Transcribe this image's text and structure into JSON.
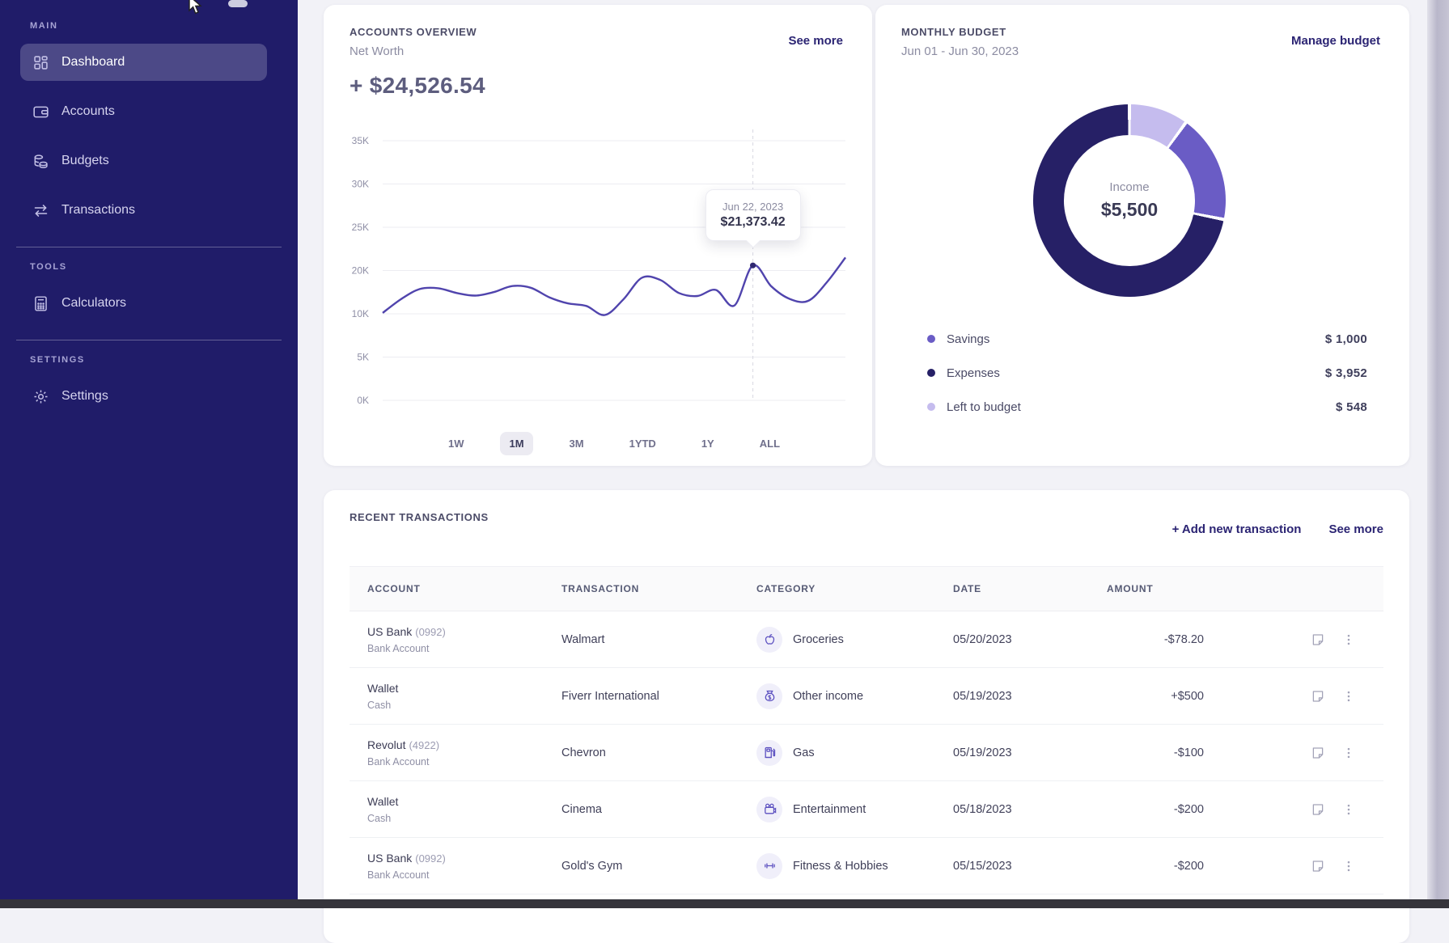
{
  "colors": {
    "sidebar_bg": "#201c69",
    "accent_link": "#2b2473",
    "line_series": "#5044ad",
    "donut_dark": "#262066",
    "donut_medium": "#6a5cc5",
    "donut_light": "#c5bcee"
  },
  "sidebar": {
    "sections": [
      {
        "label": "MAIN",
        "items": [
          {
            "label": "Dashboard",
            "icon": "dashboard-icon",
            "active": true
          },
          {
            "label": "Accounts",
            "icon": "wallet-icon",
            "active": false
          },
          {
            "label": "Budgets",
            "icon": "coins-icon",
            "active": false
          },
          {
            "label": "Transactions",
            "icon": "transfer-arrows-icon",
            "active": false
          }
        ]
      },
      {
        "label": "TOOLS",
        "items": [
          {
            "label": "Calculators",
            "icon": "calculator-icon",
            "active": false
          }
        ]
      },
      {
        "label": "SETTINGS",
        "items": [
          {
            "label": "Settings",
            "icon": "gear-icon",
            "active": false
          }
        ]
      }
    ]
  },
  "accounts_overview": {
    "title": "ACCOUNTS OVERVIEW",
    "subtitle": "Net Worth",
    "net_worth": "+ $24,526.54",
    "see_more": "See more",
    "ranges": [
      "1W",
      "1M",
      "3M",
      "1YTD",
      "1Y",
      "ALL"
    ],
    "active_range": "1M",
    "tooltip": {
      "date": "Jun 22, 2023",
      "value": "$21,373.42"
    }
  },
  "monthly_budget": {
    "title": "MONTHLY BUDGET",
    "subtitle": "Jun 01 - Jun 30, 2023",
    "manage": "Manage budget",
    "center_label": "Income",
    "center_value": "$5,500",
    "legend": [
      {
        "label": "Savings",
        "value": "$ 1,000",
        "color": "#6a5cc5"
      },
      {
        "label": "Expenses",
        "value": "$ 3,952",
        "color": "#262066"
      },
      {
        "label": "Left to budget",
        "value": "$ 548",
        "color": "#c5bcee"
      }
    ]
  },
  "transactions": {
    "title": "RECENT TRANSACTIONS",
    "add_new": "+ Add new transaction",
    "see_more": "See more",
    "columns": [
      "ACCOUNT",
      "TRANSACTION",
      "CATEGORY",
      "DATE",
      "AMOUNT"
    ],
    "rows": [
      {
        "account": "US Bank",
        "account_number": "(0992)",
        "account_type": "Bank Account",
        "transaction": "Walmart",
        "category": "Groceries",
        "category_icon": "apple-icon",
        "date": "05/20/2023",
        "amount": "-$78.20"
      },
      {
        "account": "Wallet",
        "account_number": "",
        "account_type": "Cash",
        "transaction": "Fiverr International",
        "category": "Other income",
        "category_icon": "money-bag-icon",
        "date": "05/19/2023",
        "amount": "+$500"
      },
      {
        "account": "Revolut",
        "account_number": "(4922)",
        "account_type": "Bank Account",
        "transaction": "Chevron",
        "category": "Gas",
        "category_icon": "fuel-pump-icon",
        "date": "05/19/2023",
        "amount": "-$100"
      },
      {
        "account": "Wallet",
        "account_number": "",
        "account_type": "Cash",
        "transaction": "Cinema",
        "category": "Entertainment",
        "category_icon": "movie-camera-icon",
        "date": "05/18/2023",
        "amount": "-$200"
      },
      {
        "account": "US Bank",
        "account_number": "(0992)",
        "account_type": "Bank Account",
        "transaction": "Gold's Gym",
        "category": "Fitness & Hobbies",
        "category_icon": "dumbbell-icon",
        "date": "05/15/2023",
        "amount": "-$200"
      }
    ]
  },
  "chart_data": [
    {
      "type": "line",
      "title": "Accounts Overview - Net Worth",
      "selected_range": "1M",
      "y_tick_labels": [
        "35K",
        "30K",
        "25K",
        "20K",
        "10K",
        "5K",
        "0K"
      ],
      "ylim_thousands": [
        0,
        35
      ],
      "grid": true,
      "series_thousands": [
        10.4,
        13.6,
        15.9,
        16.1,
        15.0,
        14.4,
        15.2,
        16.6,
        16.2,
        14.0,
        12.6,
        12.0,
        9.9,
        13.5,
        18.5,
        18.0,
        15.0,
        14.3,
        15.7,
        12.1,
        21.37,
        16.5,
        13.6,
        13.2,
        17.5,
        23.2
      ],
      "highlight_index": 20,
      "highlight": {
        "date": "Jun 22, 2023",
        "value": 21373.42
      }
    },
    {
      "type": "donut",
      "title": "Monthly Budget",
      "center_label": "Income",
      "center_value": 5500,
      "start_angle_deg": 0,
      "direction": "clockwise",
      "slices": [
        {
          "label": "Left to budget",
          "value": 548,
          "color": "#c5bcee"
        },
        {
          "label": "Savings",
          "value": 1000,
          "color": "#6a5cc5"
        },
        {
          "label": "Expenses",
          "value": 3952,
          "color": "#262066"
        }
      ],
      "legend_position": "bottom"
    }
  ]
}
